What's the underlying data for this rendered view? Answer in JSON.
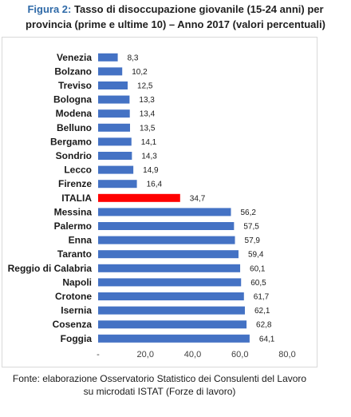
{
  "title": {
    "figure_label": "Figura 2",
    "separator": ":",
    "text_line1": " Tasso di disoccupazione giovanile (15-24 anni) per",
    "text_line2": "provincia (prime e ultime 10) – Anno 2017 (valori percentuali)"
  },
  "footer": {
    "line1": "Fonte: elaborazione Osservatorio Statistico dei Consulenti del Lavoro",
    "line2": "su microdati ISTAT (Forze di lavoro)"
  },
  "colors": {
    "bar_default": "#4472c4",
    "bar_highlight": "#ff0000"
  },
  "chart_data": {
    "type": "bar",
    "orientation": "horizontal",
    "categories": [
      "Venezia",
      "Bolzano",
      "Treviso",
      "Bologna",
      "Modena",
      "Belluno",
      "Bergamo",
      "Sondrio",
      "Lecco",
      "Firenze",
      "ITALIA",
      "Messina",
      "Palermo",
      "Enna",
      "Taranto",
      "Reggio di Calabria",
      "Napoli",
      "Crotone",
      "Isernia",
      "Cosenza",
      "Foggia"
    ],
    "values": [
      8.3,
      10.2,
      12.5,
      13.3,
      13.4,
      13.5,
      14.1,
      14.3,
      14.9,
      16.4,
      34.7,
      56.2,
      57.5,
      57.9,
      59.4,
      60.1,
      60.5,
      61.7,
      62.1,
      62.8,
      64.1
    ],
    "value_labels": [
      "8,3",
      "10,2",
      "12,5",
      "13,3",
      "13,4",
      "13,5",
      "14,1",
      "14,3",
      "14,9",
      "16,4",
      "34,7",
      "56,2",
      "57,5",
      "57,9",
      "59,4",
      "60,1",
      "60,5",
      "61,7",
      "62,1",
      "62,8",
      "64,1"
    ],
    "highlight": "ITALIA",
    "xlim": [
      0,
      80
    ],
    "x_ticks": [
      0,
      20,
      40,
      60,
      80
    ],
    "x_tick_labels": [
      "-",
      "20,0",
      "40,0",
      "60,0",
      "80,0"
    ],
    "grid": false,
    "legend": "none"
  }
}
